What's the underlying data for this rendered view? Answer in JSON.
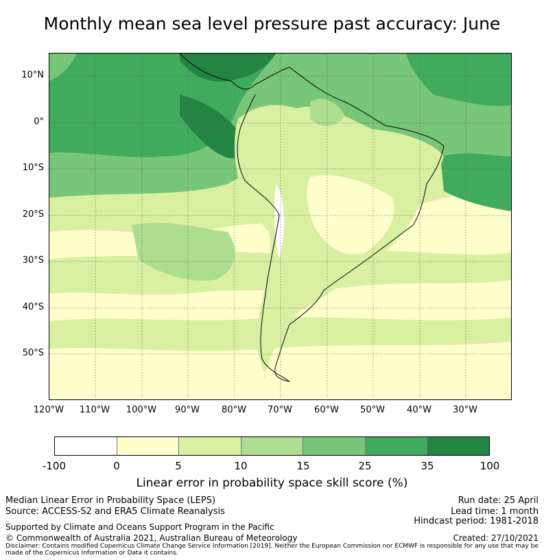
{
  "title": "Monthly mean sea level pressure past accuracy: June",
  "map": {
    "lat_labels": [
      "10°N",
      "0°",
      "10°S",
      "20°S",
      "30°S",
      "40°S",
      "50°S"
    ],
    "lon_labels": [
      "120°W",
      "110°W",
      "100°W",
      "90°W",
      "80°W",
      "70°W",
      "60°W",
      "50°W",
      "40°W",
      "30°W"
    ],
    "extent": {
      "lon_min": -120,
      "lon_max": -20,
      "lat_min": -60,
      "lat_max": 15
    }
  },
  "colorbar": {
    "ticks": [
      "-100",
      "0",
      "5",
      "10",
      "15",
      "25",
      "35",
      "100"
    ],
    "colors": [
      "#ffffff",
      "#ffffcc",
      "#d9f0a3",
      "#addd8e",
      "#78c679",
      "#41ab5d",
      "#238443"
    ],
    "label": "Linear error in probability space skill score (%)"
  },
  "footer": {
    "left_line1": "Median Linear Error in Probability Space (LEPS)",
    "left_line2": "Source: ACCESS-S2 and ERA5 Climate Reanalysis",
    "left_line3": "Supported by Climate and Oceans Support Program in the Pacific",
    "left_line4": "© Commonwealth of Australia 2021, Australian Bureau of Meteorology",
    "run_date": "Run date: 25 April",
    "lead_time": "Lead time: 1 month",
    "hindcast": "Hindcast period: 1981-2018",
    "created": "Created: 27/10/2021",
    "disclaimer": "Disclaimer: Contains modified Copernicus Climate Change Service Information [2019]. Neither the European Commission nor ECMWF is responsible for any use that may be made of the Copernicus Information or Data it contains."
  }
}
